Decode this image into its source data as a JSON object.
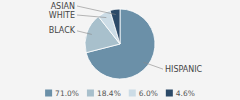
{
  "chart_data": {
    "type": "pie",
    "categories": [
      "HISPANIC",
      "BLACK",
      "WHITE",
      "ASIAN"
    ],
    "values": [
      71.0,
      18.4,
      6.0,
      4.6
    ],
    "value_labels": [
      "71.0%",
      "18.4%",
      "6.0%",
      "4.6%"
    ],
    "colors": [
      "#6b90a8",
      "#a8c0cc",
      "#ccdce6",
      "#2c4a68"
    ],
    "legend": "bottom"
  }
}
